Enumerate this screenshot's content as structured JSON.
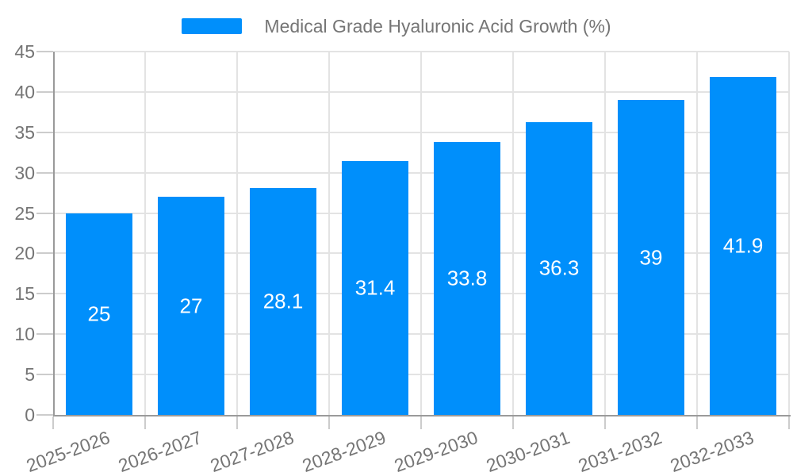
{
  "legend": {
    "label": "Medical Grade Hyaluronic Acid Growth (%)"
  },
  "chart_data": {
    "type": "bar",
    "title": "Medical Grade Hyaluronic Acid Growth (%)",
    "categories": [
      "2025-2026",
      "2026-2027",
      "2027-2028",
      "2028-2029",
      "2029-2030",
      "2030-2031",
      "2031-2032",
      "2032-2033"
    ],
    "values": [
      25,
      27,
      28.1,
      31.4,
      33.8,
      36.3,
      39,
      41.9
    ],
    "xlabel": "",
    "ylabel": "",
    "ylim": [
      0,
      45
    ],
    "ytick_step": 5,
    "yticks": [
      0,
      5,
      10,
      15,
      20,
      25,
      30,
      35,
      40,
      45
    ],
    "grid": true,
    "legend_position": "top-center",
    "value_label_position": "inside-middle",
    "x_label_rotation_deg": -20
  },
  "colors": {
    "bar": "#008FFB",
    "grid": "#e3e3e3",
    "axis": "#9a9a9a",
    "tick": "#cccccc",
    "text": "#757575",
    "value_label": "#ffffff",
    "background": "#ffffff"
  }
}
